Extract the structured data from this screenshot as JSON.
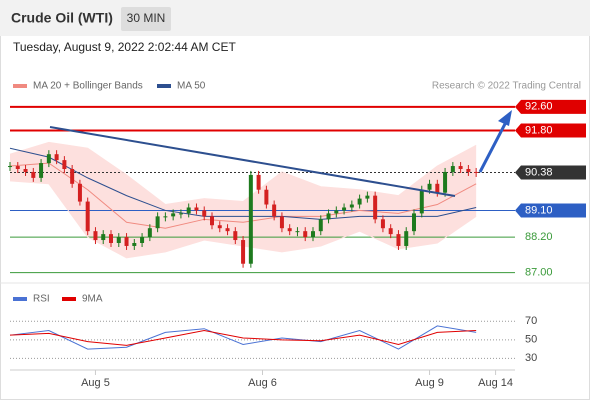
{
  "chart_data": {
    "type": "candlestick",
    "title": "Crude Oil (WTI)",
    "timeframe": "30 MIN",
    "date": "Tuesday, August 9, 2022 2:02:44 AM CET",
    "credit": "Research © 2022 Trading Central",
    "xlim": [
      0,
      65
    ],
    "xticks": [
      {
        "value": 11,
        "label": "Aug 5"
      },
      {
        "value": 32.5,
        "label": "Aug 6"
      },
      {
        "value": 54,
        "label": "Aug 9"
      },
      {
        "value": 62.5,
        "label": "Aug 14"
      }
    ],
    "ylim": [
      86.75,
      93
    ],
    "closes": [
      90.6,
      90.5,
      90.4,
      90.2,
      90.7,
      91.0,
      90.8,
      90.5,
      90.0,
      89.4,
      88.4,
      88.1,
      88.3,
      88.0,
      88.2,
      87.9,
      88.0,
      88.2,
      88.5,
      88.9,
      88.9,
      89.0,
      89.0,
      89.2,
      89.1,
      88.9,
      88.6,
      88.5,
      88.4,
      88.1,
      87.3,
      90.3,
      89.8,
      89.3,
      88.9,
      88.5,
      88.4,
      88.4,
      88.2,
      88.4,
      88.8,
      89.0,
      89.1,
      89.2,
      89.3,
      89.5,
      89.6,
      88.8,
      88.5,
      88.3,
      87.9,
      88.4,
      89.0,
      89.8,
      90.0,
      89.7,
      90.4,
      90.6,
      90.5,
      90.4,
      90.38
    ],
    "up_color": "#1e7a1e",
    "down_color": "#d42020",
    "overlays": [
      {
        "name": "MA 20 + Bollinger Bands",
        "color": "#f08a80",
        "band_color": "#fde0de",
        "x": [
          0,
          5,
          10,
          15,
          20,
          25,
          30,
          35,
          40,
          45,
          50,
          55,
          60
        ],
        "values": [
          90.6,
          90.7,
          89.8,
          88.7,
          88.5,
          88.8,
          88.7,
          88.9,
          88.9,
          89.1,
          89.0,
          89.3,
          90.0
        ],
        "upper": [
          91.0,
          91.4,
          91.2,
          90.3,
          89.3,
          89.5,
          89.4,
          90.4,
          89.9,
          89.8,
          89.6,
          90.6,
          91.3
        ],
        "lower": [
          90.1,
          90.0,
          88.2,
          87.5,
          87.7,
          88.1,
          87.9,
          87.7,
          87.9,
          88.4,
          87.8,
          88.0,
          88.9
        ]
      },
      {
        "name": "MA 50",
        "color": "#2d4f8f",
        "x": [
          0,
          5,
          10,
          15,
          20,
          25,
          30,
          35,
          40,
          45,
          50,
          55,
          60
        ],
        "values": [
          91.2,
          90.9,
          90.2,
          89.6,
          89.1,
          88.9,
          88.9,
          88.9,
          88.8,
          88.9,
          88.9,
          88.9,
          89.2
        ]
      }
    ],
    "levels": [
      {
        "value": 92.6,
        "label": "92.60",
        "color": "#e00000",
        "style": "box"
      },
      {
        "value": 91.8,
        "label": "91.80",
        "color": "#e00000",
        "style": "box"
      },
      {
        "value": 90.38,
        "label": "90.38",
        "color": "#333333",
        "style": "current"
      },
      {
        "value": 89.1,
        "label": "89.10",
        "color": "#2d5fc4",
        "style": "box"
      },
      {
        "value": 88.2,
        "label": "88.20",
        "color": "#3a9a3a",
        "style": "text"
      },
      {
        "value": 87.0,
        "label": "87.00",
        "color": "#3a9a3a",
        "style": "text"
      }
    ],
    "rsi": {
      "ylim": [
        12,
        93
      ],
      "yticks": [
        70,
        50,
        30
      ],
      "series": [
        {
          "name": "RSI",
          "color": "#4a72d4",
          "x": [
            0,
            5,
            10,
            15,
            20,
            25,
            30,
            35,
            40,
            45,
            50,
            55,
            60
          ],
          "values": [
            55,
            60,
            40,
            42,
            58,
            62,
            45,
            52,
            48,
            60,
            40,
            65,
            58
          ]
        },
        {
          "name": "9MA",
          "color": "#e00000",
          "x": [
            0,
            5,
            10,
            15,
            20,
            25,
            30,
            35,
            40,
            45,
            50,
            55,
            60
          ],
          "values": [
            55,
            57,
            48,
            44,
            52,
            60,
            52,
            50,
            49,
            55,
            45,
            58,
            60
          ]
        }
      ]
    }
  }
}
